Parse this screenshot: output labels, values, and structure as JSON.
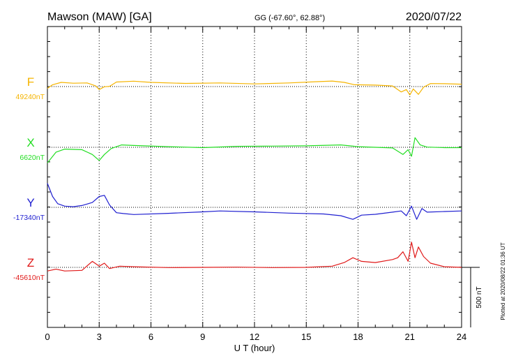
{
  "header": {
    "station": "Mawson (MAW)  [GA]",
    "coords": "GG (-67.60°,  62.88°)",
    "date": "2020/07/22"
  },
  "footer_note": "Plotted at 2020/08/22 01:36 UT",
  "chart_data": {
    "type": "line",
    "title": "Mawson (MAW)  [GA]",
    "xlabel": "U T (hour)",
    "xlim": [
      0,
      24
    ],
    "xticks": [
      0,
      3,
      6,
      9,
      12,
      15,
      18,
      21,
      24
    ],
    "xtick_labels": [
      "0",
      "3",
      "6",
      "9",
      "12",
      "15",
      "18",
      "21",
      "24"
    ],
    "grid": "dotted vertical every 3 h; dotted baseline per trace",
    "scale_bar": {
      "label": "500 nT",
      "nT": 500
    },
    "series": [
      {
        "name": "F",
        "baseline_label": "49240nT",
        "baseline": 49240,
        "color": "#f5b400",
        "x": [
          0,
          0.3,
          0.8,
          1.5,
          2.3,
          2.8,
          3.0,
          3.3,
          3.6,
          4.0,
          5,
          6,
          8,
          10,
          12,
          14,
          15.5,
          16.5,
          17.2,
          17.8,
          19,
          20,
          20.5,
          20.8,
          21.0,
          21.2,
          21.5,
          21.8,
          22.2,
          23,
          24
        ],
        "y": [
          49225,
          49255,
          49275,
          49268,
          49270,
          49245,
          49215,
          49238,
          49242,
          49278,
          49285,
          49275,
          49266,
          49270,
          49262,
          49270,
          49280,
          49286,
          49275,
          49255,
          49252,
          49245,
          49195,
          49215,
          49170,
          49220,
          49175,
          49235,
          49265,
          49264,
          49260
        ]
      },
      {
        "name": "X",
        "baseline_label": "6620nT",
        "baseline": 6620,
        "color": "#22dd22",
        "x": [
          0,
          0.5,
          1,
          2,
          2.6,
          3.0,
          3.3,
          3.7,
          4.3,
          5,
          7,
          9,
          11,
          13,
          15,
          17,
          18,
          19,
          20,
          20.6,
          20.9,
          21.1,
          21.3,
          21.6,
          22,
          23,
          24
        ],
        "y": [
          6490,
          6580,
          6605,
          6600,
          6560,
          6510,
          6560,
          6610,
          6640,
          6635,
          6625,
          6617,
          6628,
          6630,
          6632,
          6640,
          6625,
          6620,
          6615,
          6560,
          6600,
          6545,
          6700,
          6640,
          6622,
          6617,
          6617
        ]
      },
      {
        "name": "Y",
        "baseline_label": "-17340nT",
        "baseline": -17340,
        "color": "#1f1fd0",
        "x": [
          0,
          0.3,
          0.6,
          1,
          1.5,
          2,
          2.6,
          3.0,
          3.3,
          3.6,
          4.0,
          4.4,
          5,
          7,
          9,
          10,
          12,
          14,
          16,
          17,
          17.7,
          18.2,
          19,
          20,
          20.5,
          20.8,
          21.1,
          21.4,
          21.7,
          22,
          23,
          24
        ],
        "y": [
          -17140,
          -17250,
          -17310,
          -17330,
          -17335,
          -17325,
          -17300,
          -17250,
          -17240,
          -17320,
          -17385,
          -17392,
          -17400,
          -17390,
          -17378,
          -17370,
          -17378,
          -17388,
          -17395,
          -17410,
          -17440,
          -17405,
          -17398,
          -17380,
          -17370,
          -17410,
          -17330,
          -17440,
          -17350,
          -17380,
          -17375,
          -17370
        ]
      },
      {
        "name": "Z",
        "baseline_label": "-45610nT",
        "baseline": -45610,
        "color": "#e01818",
        "x": [
          0,
          0.5,
          1,
          2,
          2.6,
          3.0,
          3.3,
          3.6,
          4.2,
          5,
          7,
          9,
          11,
          13,
          15,
          16.5,
          17.2,
          17.7,
          18.2,
          19,
          20,
          20.3,
          20.6,
          20.9,
          21.1,
          21.3,
          21.5,
          21.8,
          22.2,
          23,
          24
        ],
        "y": [
          -45640,
          -45625,
          -45640,
          -45635,
          -45560,
          -45600,
          -45575,
          -45620,
          -45600,
          -45605,
          -45612,
          -45610,
          -45608,
          -45612,
          -45610,
          -45600,
          -45570,
          -45530,
          -45560,
          -45570,
          -45545,
          -45530,
          -45480,
          -45560,
          -45400,
          -45530,
          -45440,
          -45520,
          -45575,
          -45605,
          -45610
        ]
      }
    ]
  }
}
